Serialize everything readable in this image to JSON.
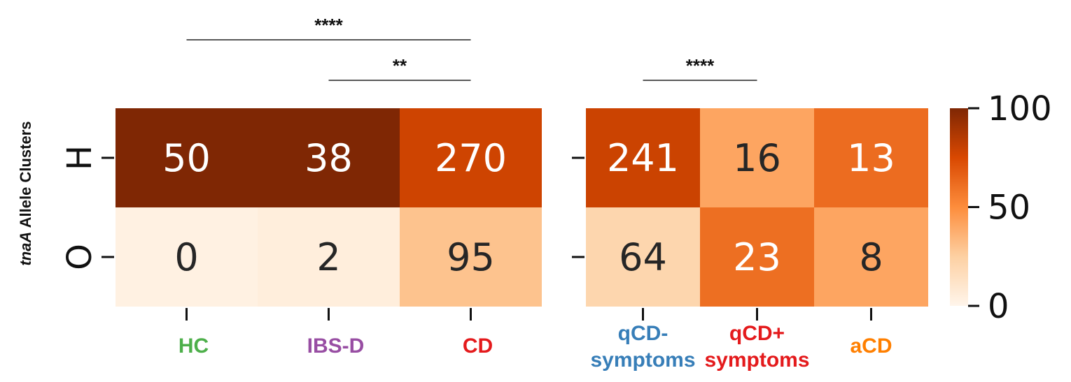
{
  "chart_data": [
    {
      "type": "heatmap",
      "ylabel_italic": "tnaA",
      "ylabel_rest": " Allele Clusters",
      "row_labels": [
        "H",
        "O"
      ],
      "columns": [
        {
          "label": [
            "HC"
          ],
          "color": "#4daf4a"
        },
        {
          "label": [
            "IBS-D"
          ],
          "color": "#984ea3"
        },
        {
          "label": [
            "CD"
          ],
          "color": "#e41a1c"
        }
      ],
      "values": [
        [
          50,
          38,
          270
        ],
        [
          0,
          2,
          95
        ]
      ],
      "color_values": [
        [
          100,
          100,
          78
        ],
        [
          3,
          5,
          30
        ]
      ],
      "significance": [
        {
          "from_col": 0,
          "to_col": 2,
          "text": "****"
        },
        {
          "from_col": 1,
          "to_col": 2,
          "text": "**"
        }
      ]
    },
    {
      "type": "heatmap",
      "row_labels": [
        "H",
        "O"
      ],
      "columns": [
        {
          "label": [
            "qCD-",
            "symptoms"
          ],
          "color": "#377eb8"
        },
        {
          "label": [
            "qCD+",
            "symptoms"
          ],
          "color": "#e41a1c"
        },
        {
          "label": [
            "aCD"
          ],
          "color": "#ff7f00"
        }
      ],
      "values": [
        [
          241,
          16,
          13
        ],
        [
          64,
          23,
          8
        ]
      ],
      "color_values": [
        [
          79,
          41,
          62
        ],
        [
          21,
          61,
          41
        ]
      ],
      "significance": [
        {
          "from_col": 0,
          "to_col": 1,
          "text": "****"
        }
      ]
    }
  ],
  "colorbar": {
    "min": 0,
    "max": 100,
    "ticks": [
      0,
      50,
      100
    ],
    "colormap": [
      "#fff5eb",
      "#fdd0a2",
      "#fd8d3c",
      "#d94801",
      "#7f2704"
    ]
  }
}
